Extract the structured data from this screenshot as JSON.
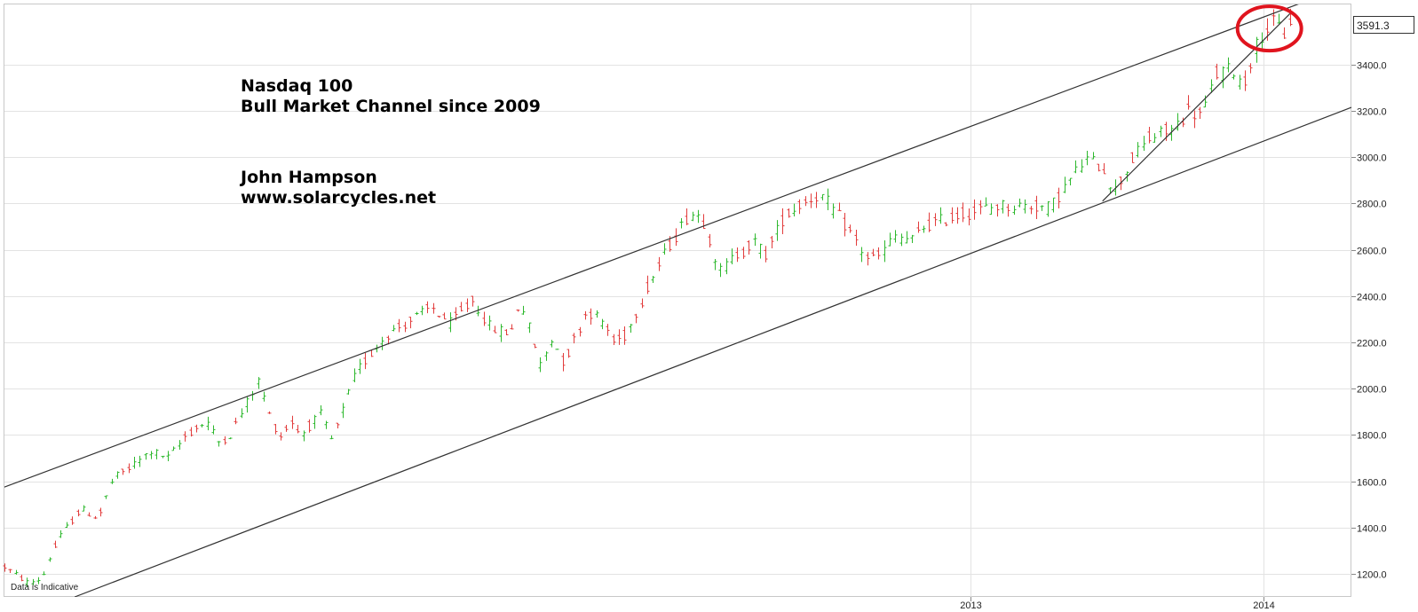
{
  "chart_data": {
    "type": "ohlc",
    "title_lines": [
      "Nasdaq 100",
      "Bull Market Channel since 2009"
    ],
    "author_lines": [
      "John Hampson",
      "www.solarcycles.net"
    ],
    "footnote": "Data is Indicative",
    "last_value": "3591.3",
    "y_ticks": [
      1200,
      1400,
      1600,
      1800,
      2000,
      2200,
      2400,
      2600,
      2800,
      3000,
      3200,
      3400
    ],
    "y_tick_labels": [
      "1200.0",
      "1400.0",
      "1600.0",
      "1800.0",
      "2000.0",
      "2200.0",
      "2400.0",
      "2600.0",
      "2800.0",
      "3000.0",
      "3200.0",
      "3400.0"
    ],
    "ylim": [
      1100,
      3660
    ],
    "x_labels": [
      {
        "t": 2013.0,
        "label": "2013"
      },
      {
        "t": 2014.0,
        "label": "2014"
      }
    ],
    "xlim": [
      2009.7,
      2014.3
    ],
    "grid": true,
    "up_color": "#2db82d",
    "down_color": "#e23c3c",
    "trendline_color": "#333333",
    "highlight_color": "#e0141e",
    "channel_lines": [
      {
        "name": "upper",
        "points": [
          [
            2009.69,
            1570
          ],
          [
            2014.2,
            3700
          ]
        ]
      },
      {
        "name": "lower",
        "points": [
          [
            2009.94,
            1100
          ],
          [
            2014.3,
            3215
          ]
        ]
      },
      {
        "name": "short-term",
        "points": [
          [
            2013.45,
            2810
          ],
          [
            2014.09,
            3620
          ]
        ]
      }
    ],
    "highlight": {
      "t": 2014.02,
      "v": 3556
    },
    "price_path": [
      [
        2009.7,
        1230
      ],
      [
        2009.78,
        1160
      ],
      [
        2009.83,
        1180
      ],
      [
        2009.85,
        1260
      ],
      [
        2009.9,
        1380
      ],
      [
        2009.96,
        1480
      ],
      [
        2010.02,
        1440
      ],
      [
        2010.07,
        1610
      ],
      [
        2010.12,
        1650
      ],
      [
        2010.2,
        1730
      ],
      [
        2010.26,
        1700
      ],
      [
        2010.32,
        1800
      ],
      [
        2010.39,
        1860
      ],
      [
        2010.43,
        1770
      ],
      [
        2010.47,
        1800
      ],
      [
        2010.57,
        2040
      ],
      [
        2010.6,
        1900
      ],
      [
        2010.64,
        1790
      ],
      [
        2010.68,
        1860
      ],
      [
        2010.71,
        1800
      ],
      [
        2010.78,
        1890
      ],
      [
        2010.82,
        1770
      ],
      [
        2010.84,
        1850
      ],
      [
        2010.9,
        2070
      ],
      [
        2011.0,
        2230
      ],
      [
        2011.12,
        2320
      ],
      [
        2011.16,
        2350
      ],
      [
        2011.22,
        2280
      ],
      [
        2011.3,
        2380
      ],
      [
        2011.36,
        2260
      ],
      [
        2011.43,
        2240
      ],
      [
        2011.46,
        2390
      ],
      [
        2011.53,
        2100
      ],
      [
        2011.57,
        2220
      ],
      [
        2011.61,
        2110
      ],
      [
        2011.69,
        2340
      ],
      [
        2011.75,
        2280
      ],
      [
        2011.78,
        2200
      ],
      [
        2011.82,
        2230
      ],
      [
        2011.9,
        2450
      ],
      [
        2011.97,
        2620
      ],
      [
        2012.04,
        2760
      ],
      [
        2012.08,
        2750
      ],
      [
        2012.12,
        2600
      ],
      [
        2012.14,
        2500
      ],
      [
        2012.2,
        2580
      ],
      [
        2012.26,
        2630
      ],
      [
        2012.3,
        2580
      ],
      [
        2012.36,
        2740
      ],
      [
        2012.42,
        2800
      ],
      [
        2012.48,
        2840
      ],
      [
        2012.52,
        2790
      ],
      [
        2012.58,
        2690
      ],
      [
        2012.64,
        2570
      ],
      [
        2012.68,
        2560
      ],
      [
        2012.74,
        2660
      ],
      [
        2012.8,
        2640
      ],
      [
        2012.84,
        2700
      ],
      [
        2012.96,
        2750
      ],
      [
        2013.09,
        2790
      ],
      [
        2013.21,
        2790
      ],
      [
        2013.27,
        2780
      ],
      [
        2013.32,
        2870
      ],
      [
        2013.39,
        2990
      ],
      [
        2013.45,
        2960
      ],
      [
        2013.49,
        2850
      ],
      [
        2013.55,
        2990
      ],
      [
        2013.61,
        3080
      ],
      [
        2013.69,
        3120
      ],
      [
        2013.74,
        3200
      ],
      [
        2013.79,
        3180
      ],
      [
        2013.84,
        3360
      ],
      [
        2013.9,
        3380
      ],
      [
        2013.93,
        3300
      ],
      [
        2013.96,
        3440
      ],
      [
        2014.0,
        3550
      ],
      [
        2014.04,
        3580
      ],
      [
        2014.07,
        3530
      ],
      [
        2014.09,
        3591
      ]
    ]
  }
}
